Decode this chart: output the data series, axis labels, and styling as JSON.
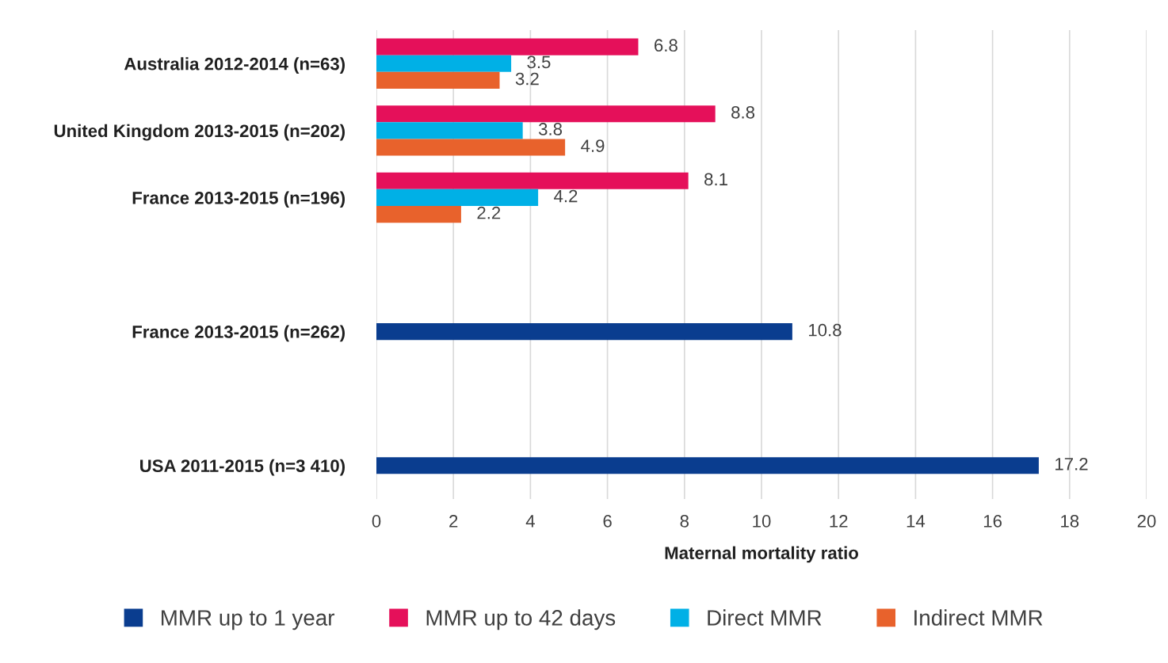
{
  "chart_data": {
    "type": "bar",
    "orientation": "horizontal",
    "xlabel": "Maternal mortality ratio",
    "categories": [
      "Australia 2012-2014 (n=63)",
      "United Kingdom 2013-2015 (n=202)",
      "France 2013-2015 (n=196)",
      null,
      "France 2013-2015 (n=262)",
      null,
      "USA 2011-2015 (n=3 410)"
    ],
    "series": [
      {
        "name": "MMR up to 1 year",
        "color": "#0a3d8f",
        "values": [
          null,
          null,
          null,
          null,
          10.8,
          null,
          17.2
        ]
      },
      {
        "name": "MMR up to 42 days",
        "color": "#e5105a",
        "values": [
          6.8,
          8.8,
          8.1,
          null,
          null,
          null,
          null
        ]
      },
      {
        "name": "Direct MMR",
        "color": "#00b0e6",
        "values": [
          3.5,
          3.8,
          4.2,
          null,
          null,
          null,
          null
        ]
      },
      {
        "name": "Indirect MMR",
        "color": "#e8622c",
        "values": [
          3.2,
          4.9,
          2.2,
          null,
          null,
          null,
          null
        ]
      }
    ],
    "xlim": [
      0,
      20
    ],
    "xticks": [
      0,
      2,
      4,
      6,
      8,
      10,
      12,
      14,
      16,
      18,
      20
    ],
    "grid": "x",
    "legend": "bottom",
    "data_labels": true
  }
}
